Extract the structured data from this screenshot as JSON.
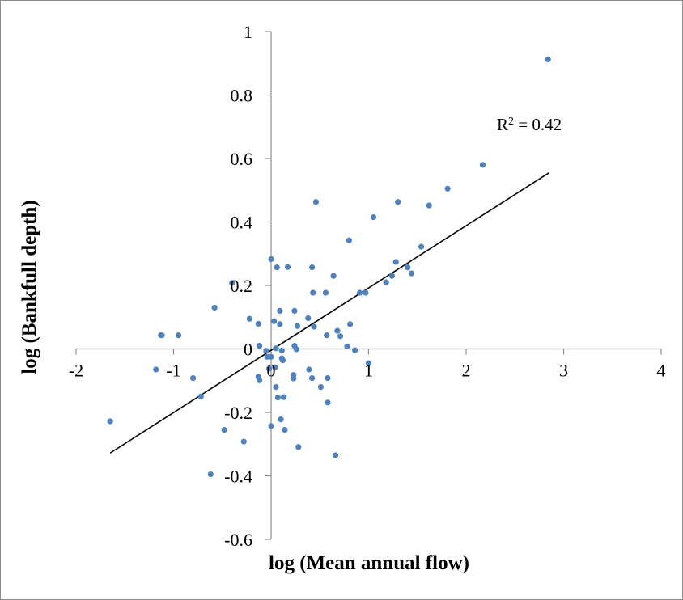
{
  "chart_data": {
    "type": "scatter",
    "xlabel": "log (Mean annual flow)",
    "ylabel": "log (Bankfull depth)",
    "xlim": [
      -2,
      4
    ],
    "ylim": [
      -0.6,
      1
    ],
    "x_ticks": [
      "-2",
      "-1",
      "0",
      "1",
      "2",
      "3",
      "4"
    ],
    "y_ticks": [
      "-0.6",
      "-0.4",
      "-0.2",
      "0",
      "0.2",
      "0.4",
      "0.6",
      "0.8",
      "1"
    ],
    "grid": false,
    "annotation": {
      "text": "R",
      "superscript": "2",
      "suffix": " = 0.42"
    },
    "colors": {
      "points": "#4f81bd",
      "trendline": "#000000",
      "axes": "#8c8c8c"
    },
    "trendline": {
      "x": [
        -1.65,
        2.85
      ],
      "y": [
        -0.328,
        0.555
      ]
    },
    "series": [
      {
        "points": [
          [
            -1.65,
            -0.228
          ],
          [
            -1.18,
            -0.065
          ],
          [
            -1.13,
            0.043
          ],
          [
            -1.12,
            0.043
          ],
          [
            -0.95,
            0.043
          ],
          [
            -0.8,
            -0.092
          ],
          [
            -0.72,
            -0.15
          ],
          [
            -0.58,
            0.13
          ],
          [
            -0.62,
            -0.395
          ],
          [
            -0.48,
            -0.255
          ],
          [
            -0.4,
            0.208
          ],
          [
            -0.28,
            -0.292
          ],
          [
            -0.22,
            0.095
          ],
          [
            -0.13,
            0.079
          ],
          [
            -0.12,
            0.01
          ],
          [
            -0.13,
            -0.088
          ],
          [
            -0.12,
            -0.099
          ],
          [
            -0.05,
            -0.006
          ],
          [
            -0.04,
            -0.025
          ],
          [
            -0.02,
            -0.062
          ],
          [
            0.0,
            0.283
          ],
          [
            0.0,
            -0.025
          ],
          [
            0.0,
            -0.243
          ],
          [
            0.03,
            0.087
          ],
          [
            0.04,
            -0.058
          ],
          [
            0.05,
            -0.12
          ],
          [
            0.05,
            0.002
          ],
          [
            0.06,
            0.257
          ],
          [
            0.07,
            -0.153
          ],
          [
            0.09,
            0.12
          ],
          [
            0.09,
            0.078
          ],
          [
            0.1,
            -0.222
          ],
          [
            0.11,
            -0.005
          ],
          [
            0.11,
            -0.03
          ],
          [
            0.12,
            -0.036
          ],
          [
            0.13,
            -0.152
          ],
          [
            0.14,
            -0.255
          ],
          [
            0.17,
            0.258
          ],
          [
            0.23,
            -0.082
          ],
          [
            0.23,
            -0.093
          ],
          [
            0.24,
            0.01
          ],
          [
            0.24,
            0.12
          ],
          [
            0.26,
            -0.001
          ],
          [
            0.27,
            0.072
          ],
          [
            0.28,
            -0.309
          ],
          [
            0.38,
            0.097
          ],
          [
            0.39,
            -0.065
          ],
          [
            0.42,
            0.257
          ],
          [
            0.42,
            -0.092
          ],
          [
            0.43,
            0.177
          ],
          [
            0.44,
            0.07
          ],
          [
            0.46,
            0.463
          ],
          [
            0.51,
            -0.12
          ],
          [
            0.56,
            0.177
          ],
          [
            0.57,
            0.043
          ],
          [
            0.58,
            -0.169
          ],
          [
            0.58,
            -0.092
          ],
          [
            0.64,
            0.23
          ],
          [
            0.66,
            -0.335
          ],
          [
            0.68,
            0.057
          ],
          [
            0.71,
            0.04
          ],
          [
            0.78,
            0.008
          ],
          [
            0.8,
            0.342
          ],
          [
            0.81,
            0.078
          ],
          [
            0.86,
            -0.004
          ],
          [
            0.91,
            0.177
          ],
          [
            0.97,
            0.177
          ],
          [
            1.0,
            -0.045
          ],
          [
            1.05,
            0.415
          ],
          [
            1.18,
            0.21
          ],
          [
            1.24,
            0.23
          ],
          [
            1.28,
            0.274
          ],
          [
            1.3,
            0.463
          ],
          [
            1.4,
            0.257
          ],
          [
            1.44,
            0.238
          ],
          [
            1.54,
            0.322
          ],
          [
            1.62,
            0.452
          ],
          [
            1.81,
            0.505
          ],
          [
            2.17,
            0.58
          ],
          [
            2.84,
            0.912
          ]
        ]
      }
    ]
  }
}
